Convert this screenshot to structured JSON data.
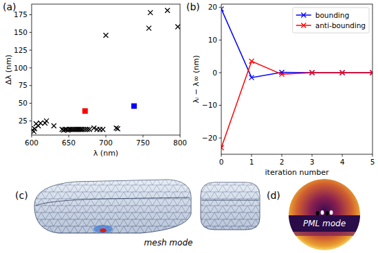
{
  "chart_data": [
    {
      "panel": "(a)",
      "type": "scatter",
      "x_label": "λ (nm)",
      "y_label": "Δλ (nm)",
      "xlim": [
        600,
        800
      ],
      "ylim": [
        5,
        190
      ],
      "xticks": [
        600,
        650,
        700,
        750,
        800
      ],
      "yticks": [
        25,
        50,
        75,
        100,
        125,
        150,
        175
      ],
      "series": [
        {
          "color": "#000000",
          "marker": "x",
          "x": [
            601,
            603,
            604,
            606,
            609,
            612,
            618,
            620,
            630,
            641,
            643,
            645,
            647,
            649,
            651,
            653,
            655,
            657,
            659,
            661,
            663,
            665,
            667,
            669,
            672,
            675,
            678,
            684,
            688,
            692,
            696,
            700,
            714,
            716,
            758,
            760,
            783,
            797
          ],
          "values": [
            12,
            10,
            14,
            21,
            18,
            22,
            22,
            25,
            18,
            13,
            12,
            13,
            13,
            12,
            13,
            13,
            13,
            13,
            13,
            13,
            13,
            13,
            13,
            13,
            13,
            13,
            13,
            15,
            13,
            13,
            13,
            146,
            15,
            14,
            156,
            178,
            181,
            158
          ]
        },
        {
          "color": "#ff0000",
          "marker": "square",
          "x": [
            672
          ],
          "values": [
            39
          ]
        },
        {
          "color": "#0000ff",
          "marker": "square",
          "x": [
            738
          ],
          "values": [
            46
          ]
        }
      ]
    },
    {
      "panel": "(b)",
      "type": "line",
      "x_label": "iteration number",
      "y_label": "λᵢ − λ∞ (nm)",
      "x": [
        0,
        1,
        2,
        3,
        4,
        5
      ],
      "xlim": [
        0,
        5
      ],
      "ylim": [
        -25,
        21
      ],
      "xticks": [
        0,
        1,
        2,
        3,
        4,
        5
      ],
      "yticks": [
        {
          "value": -20,
          "label": "−20"
        },
        {
          "value": -10,
          "label": "−10"
        },
        0,
        10,
        20
      ],
      "legend": "upper right",
      "series": [
        {
          "name": "bounding",
          "color": "#0000ff",
          "marker": "x",
          "values": [
            19.5,
            -1.5,
            0.1,
            0,
            0,
            0
          ]
        },
        {
          "name": "anti-bounding",
          "color": "#ff0000",
          "marker": "x",
          "values": [
            -23,
            3.5,
            -0.5,
            0,
            0,
            0
          ]
        }
      ]
    }
  ],
  "figures": [
    {
      "panel": "(c)",
      "caption": "mesh mode"
    },
    {
      "panel": "(d)",
      "caption": "PML mode"
    }
  ]
}
